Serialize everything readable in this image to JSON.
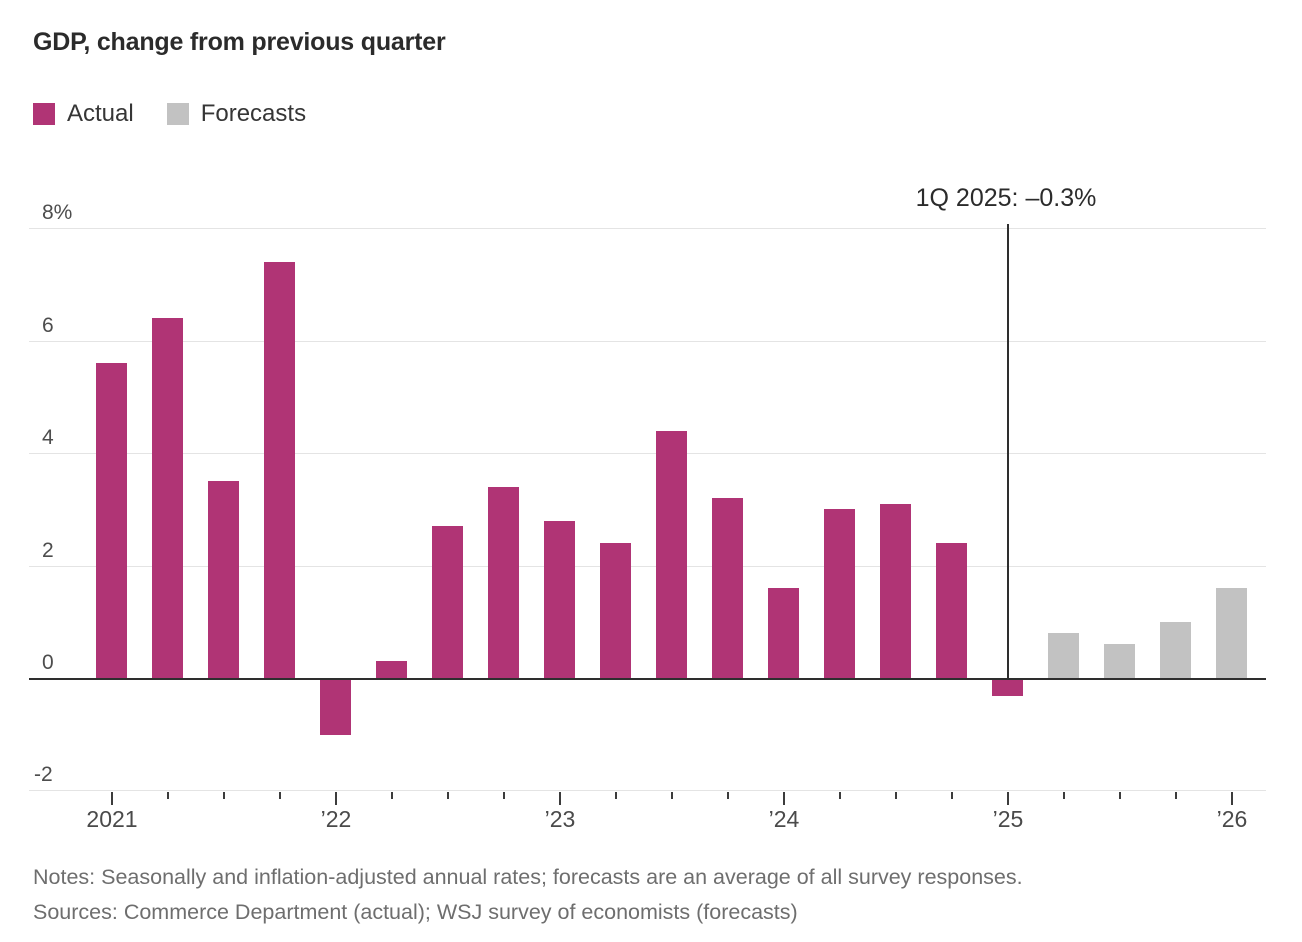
{
  "title": "GDP, change from previous quarter",
  "legend": [
    {
      "label": "Actual",
      "color": "#b03475"
    },
    {
      "label": "Forecasts",
      "color": "#c2c2c2"
    }
  ],
  "annotation": {
    "text": "1Q 2025: –0.3%"
  },
  "notes": {
    "line1": "Notes: Seasonally and inflation-adjusted annual rates; forecasts are an average of all survey responses.",
    "line2": "Sources: Commerce Department (actual); WSJ survey of economists (forecasts)"
  },
  "colors": {
    "actual": "#b03475",
    "forecast": "#c2c2c2",
    "gridline": "#e4e4e4",
    "zero_axis": "#2e2e2e",
    "tick": "#3c3c3c",
    "title_text": "#2b2b2b",
    "axis_label_text": "#4d4d4d",
    "notes_text": "#6e6e6e"
  },
  "chart_data": {
    "type": "bar",
    "title": "GDP, change from previous quarter",
    "xlabel": "",
    "ylabel": "percent change, seasonally and inflation-adjusted annual rate",
    "ylim": [
      -2,
      8
    ],
    "grid": true,
    "legend_position": "top-left",
    "y_ticks": [
      {
        "value": 8,
        "label": "8%"
      },
      {
        "value": 6,
        "label": "6"
      },
      {
        "value": 4,
        "label": "4"
      },
      {
        "value": 2,
        "label": "2"
      },
      {
        "value": 0,
        "label": "0"
      },
      {
        "value": -2,
        "label": "-2"
      }
    ],
    "x_tick_labels": [
      "2021",
      "’22",
      "’23",
      "’24",
      "’25",
      "’26"
    ],
    "categories": [
      "1Q 2021",
      "2Q 2021",
      "3Q 2021",
      "4Q 2021",
      "1Q 2022",
      "2Q 2022",
      "3Q 2022",
      "4Q 2022",
      "1Q 2023",
      "2Q 2023",
      "3Q 2023",
      "4Q 2023",
      "1Q 2024",
      "2Q 2024",
      "3Q 2024",
      "4Q 2024",
      "1Q 2025",
      "2Q 2025",
      "3Q 2025",
      "4Q 2025",
      "1Q 2026"
    ],
    "series": [
      {
        "name": "Actual",
        "color": "#b03475",
        "values": [
          5.6,
          6.4,
          3.5,
          7.4,
          -1.0,
          0.3,
          2.7,
          3.4,
          2.8,
          2.4,
          4.4,
          3.2,
          1.6,
          3.0,
          3.1,
          2.4,
          -0.3,
          null,
          null,
          null,
          null
        ]
      },
      {
        "name": "Forecasts",
        "color": "#c2c2c2",
        "values": [
          null,
          null,
          null,
          null,
          null,
          null,
          null,
          null,
          null,
          null,
          null,
          null,
          null,
          null,
          null,
          null,
          null,
          0.8,
          0.6,
          1.0,
          1.6
        ]
      }
    ],
    "annotation": {
      "text": "1Q 2025: –0.3%",
      "target_category": "1Q 2025"
    }
  }
}
